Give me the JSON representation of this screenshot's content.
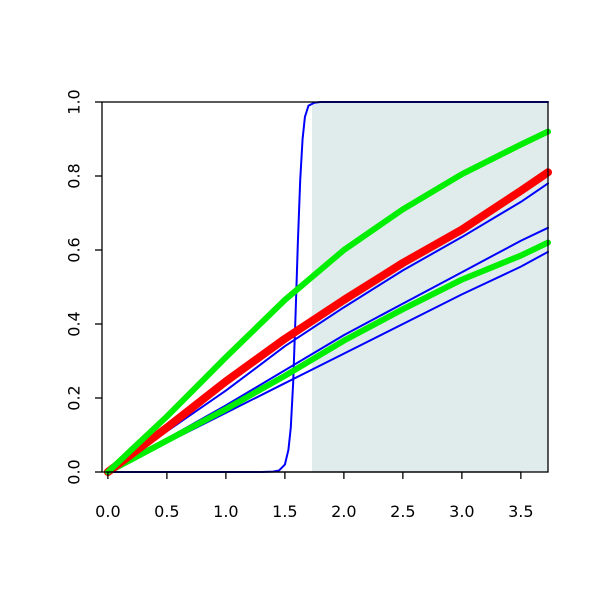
{
  "chart_data": {
    "type": "line",
    "title": "",
    "xlabel": "",
    "ylabel": "",
    "xlim": [
      -0.05,
      3.73
    ],
    "ylim": [
      0,
      1
    ],
    "x_ticks": [
      "0.0",
      "0.5",
      "1.0",
      "1.5",
      "2.0",
      "2.5",
      "3.0",
      "3.5"
    ],
    "y_ticks": [
      "0.0",
      "0.2",
      "0.4",
      "0.6",
      "0.8",
      "1.0"
    ],
    "shaded_region": {
      "x_start": 1.73,
      "x_end": 3.73,
      "color": "#e0ecec"
    },
    "grid": false,
    "legend": "none",
    "series": [
      {
        "color": "#0000ff",
        "width": 2,
        "x": [
          0,
          1.3,
          1.4,
          1.45,
          1.5,
          1.53,
          1.55,
          1.57,
          1.59,
          1.61,
          1.63,
          1.65,
          1.67,
          1.7,
          1.75,
          1.8,
          2.0,
          3.73
        ],
        "y": [
          0,
          0,
          0.001,
          0.004,
          0.02,
          0.06,
          0.12,
          0.24,
          0.42,
          0.62,
          0.79,
          0.9,
          0.96,
          0.99,
          0.998,
          1,
          1,
          1
        ]
      },
      {
        "color": "#0000ff",
        "width": 2,
        "x": [
          0,
          0.5,
          1.0,
          1.5,
          2.0,
          2.5,
          3.0,
          3.5,
          3.73
        ],
        "y": [
          0,
          0.08,
          0.16,
          0.24,
          0.32,
          0.4,
          0.48,
          0.555,
          0.595
        ]
      },
      {
        "color": "#0000ff",
        "width": 2,
        "x": [
          0,
          0.5,
          1.0,
          1.5,
          2.0,
          2.5,
          3.0,
          3.5,
          3.73
        ],
        "y": [
          0,
          0.09,
          0.18,
          0.275,
          0.37,
          0.455,
          0.54,
          0.625,
          0.66
        ]
      },
      {
        "color": "#0000ff",
        "width": 2,
        "x": [
          0,
          0.5,
          1.0,
          1.5,
          2.0,
          2.5,
          3.0,
          3.5,
          3.73
        ],
        "y": [
          0,
          0.11,
          0.22,
          0.34,
          0.445,
          0.545,
          0.635,
          0.73,
          0.78
        ]
      },
      {
        "color": "#00ee00",
        "width": 6,
        "x": [
          0,
          0.5,
          1.0,
          1.5,
          2.0,
          2.5,
          3.0,
          3.5,
          3.73
        ],
        "y": [
          0,
          0.085,
          0.17,
          0.26,
          0.355,
          0.44,
          0.52,
          0.585,
          0.62
        ]
      },
      {
        "color": "#ff0000",
        "width": 8,
        "x": [
          0,
          0.5,
          1.0,
          1.5,
          2.0,
          2.5,
          3.0,
          3.5,
          3.73
        ],
        "y": [
          0,
          0.12,
          0.245,
          0.36,
          0.465,
          0.565,
          0.655,
          0.76,
          0.81
        ]
      },
      {
        "color": "#00ee00",
        "width": 6,
        "x": [
          0,
          0.5,
          1.0,
          1.5,
          2.0,
          2.5,
          3.0,
          3.5,
          3.73
        ],
        "y": [
          0,
          0.15,
          0.31,
          0.465,
          0.6,
          0.71,
          0.805,
          0.885,
          0.92
        ]
      }
    ]
  }
}
